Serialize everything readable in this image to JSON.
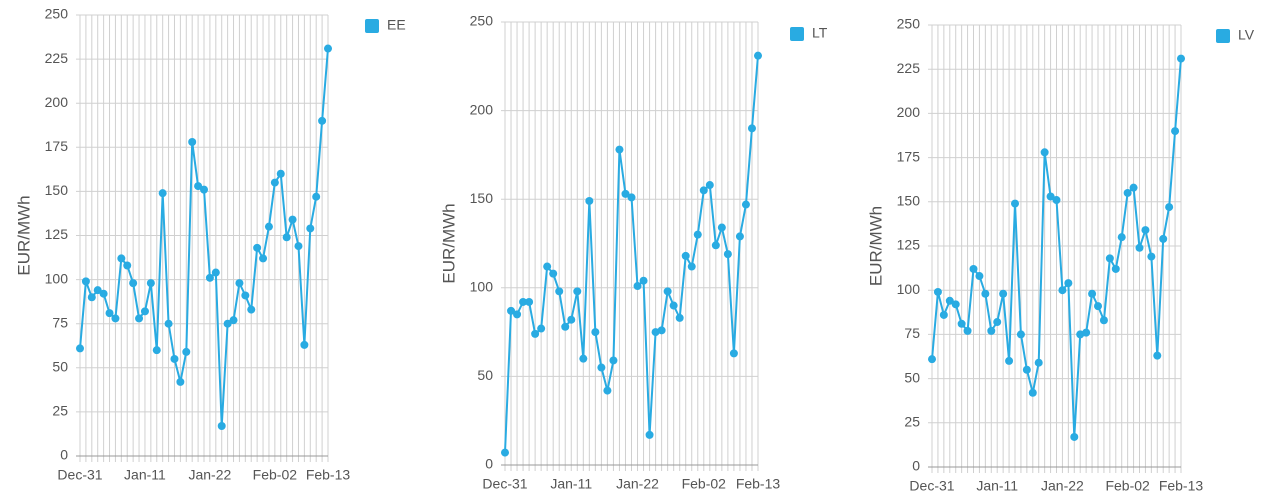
{
  "chart_data": [
    {
      "type": "line",
      "y_label": "EUR/MWh",
      "categories": [
        "Dec-31",
        null,
        null,
        null,
        null,
        null,
        null,
        null,
        null,
        null,
        null,
        "Jan-11",
        null,
        null,
        null,
        null,
        null,
        null,
        null,
        null,
        null,
        null,
        "Jan-22",
        null,
        null,
        null,
        null,
        null,
        null,
        null,
        null,
        null,
        null,
        "Feb-02",
        null,
        null,
        null,
        null,
        null,
        null,
        null,
        null,
        "Feb-13"
      ],
      "series": [
        {
          "name": "EE",
          "color": "#29abe2",
          "values": [
            61,
            99,
            90,
            94,
            92,
            81,
            78,
            112,
            108,
            98,
            78,
            82,
            98,
            60,
            149,
            75,
            55,
            42,
            59,
            178,
            153,
            151,
            101,
            104,
            17,
            75,
            77,
            98,
            91,
            83,
            118,
            112,
            130,
            155,
            160,
            124,
            134,
            119,
            63,
            129,
            147,
            190,
            231
          ]
        }
      ],
      "ylim": [
        0,
        250
      ],
      "yticks": [
        0,
        25,
        50,
        75,
        100,
        125,
        150,
        175,
        200,
        225,
        250
      ],
      "grid": true,
      "legend": "top-right"
    },
    {
      "type": "line",
      "y_label": "EUR/MWh",
      "categories": [
        "Dec-31",
        null,
        null,
        null,
        null,
        null,
        null,
        null,
        null,
        null,
        null,
        "Jan-11",
        null,
        null,
        null,
        null,
        null,
        null,
        null,
        null,
        null,
        null,
        "Jan-22",
        null,
        null,
        null,
        null,
        null,
        null,
        null,
        null,
        null,
        null,
        "Feb-02",
        null,
        null,
        null,
        null,
        null,
        null,
        null,
        null,
        "Feb-13"
      ],
      "series": [
        {
          "name": "LT",
          "color": "#29abe2",
          "values": [
            7,
            87,
            85,
            92,
            92,
            74,
            77,
            112,
            108,
            98,
            78,
            82,
            98,
            60,
            149,
            75,
            55,
            42,
            59,
            178,
            153,
            151,
            101,
            104,
            17,
            75,
            76,
            98,
            90,
            83,
            118,
            112,
            130,
            155,
            158,
            124,
            134,
            119,
            63,
            129,
            147,
            190,
            231
          ]
        }
      ],
      "ylim": [
        0,
        250
      ],
      "yticks": [
        0,
        50,
        100,
        150,
        200,
        250
      ],
      "grid": true,
      "legend": "top-right"
    },
    {
      "type": "line",
      "y_label": "EUR/MWh",
      "categories": [
        "Dec-31",
        null,
        null,
        null,
        null,
        null,
        null,
        null,
        null,
        null,
        null,
        "Jan-11",
        null,
        null,
        null,
        null,
        null,
        null,
        null,
        null,
        null,
        null,
        "Jan-22",
        null,
        null,
        null,
        null,
        null,
        null,
        null,
        null,
        null,
        null,
        "Feb-02",
        null,
        null,
        null,
        null,
        null,
        null,
        null,
        null,
        "Feb-13"
      ],
      "series": [
        {
          "name": "LV",
          "color": "#29abe2",
          "values": [
            61,
            99,
            86,
            94,
            92,
            81,
            77,
            112,
            108,
            98,
            77,
            82,
            98,
            60,
            149,
            75,
            55,
            42,
            59,
            178,
            153,
            151,
            100,
            104,
            17,
            75,
            76,
            98,
            91,
            83,
            118,
            112,
            130,
            155,
            158,
            124,
            134,
            119,
            63,
            129,
            147,
            190,
            231
          ]
        }
      ],
      "ylim": [
        0,
        250
      ],
      "yticks": [
        0,
        25,
        50,
        75,
        100,
        125,
        150,
        175,
        200,
        225,
        250
      ],
      "grid": true,
      "legend": "top-right"
    }
  ]
}
